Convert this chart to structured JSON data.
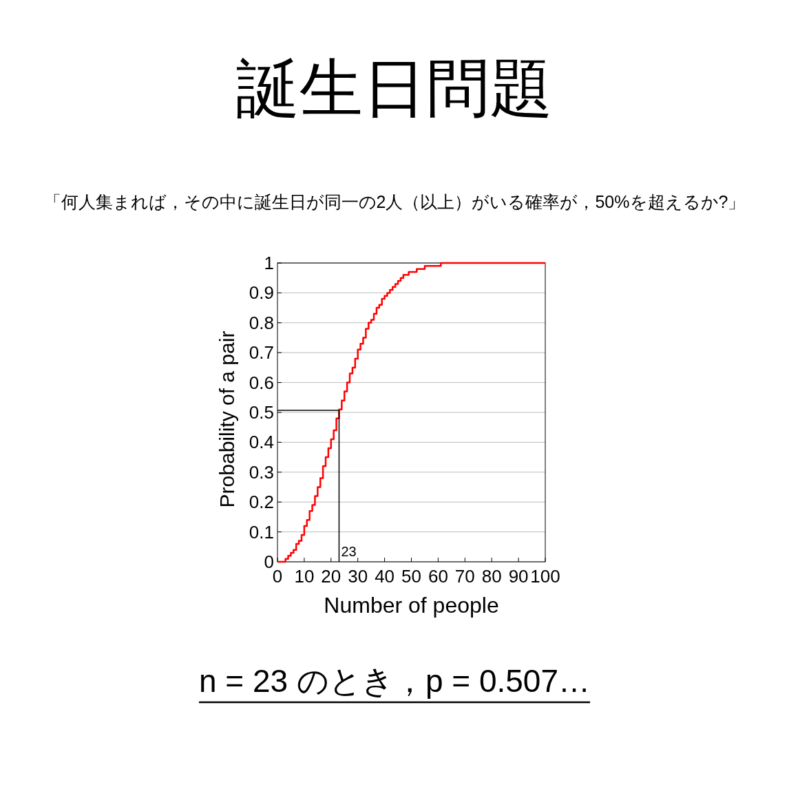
{
  "chart_data": {
    "type": "step",
    "title": "誕生日問題",
    "subtitle": "「何人集まれば，その中に誕生日が同一の2人（以上）がいる確率が，50%を超えるか?」",
    "xlabel": "Number of people",
    "ylabel": "Probability of a pair",
    "xlim": [
      0,
      100
    ],
    "ylim": [
      0,
      1
    ],
    "xticks": [
      0,
      10,
      20,
      30,
      40,
      50,
      60,
      70,
      80,
      90,
      100
    ],
    "yticks": [
      0,
      0.1,
      0.2,
      0.3,
      0.4,
      0.5,
      0.6,
      0.7,
      0.8,
      0.9,
      1
    ],
    "grid": "y",
    "marker": "none",
    "line_style": "solid",
    "series": [
      {
        "color": "#ff0000",
        "type": "step",
        "x": [
          0,
          1,
          2,
          3,
          4,
          5,
          6,
          7,
          8,
          9,
          10,
          11,
          12,
          13,
          14,
          15,
          16,
          17,
          18,
          19,
          20,
          21,
          22,
          23,
          24,
          25,
          26,
          27,
          28,
          29,
          30,
          31,
          32,
          33,
          34,
          35,
          36,
          37,
          38,
          39,
          40,
          41,
          42,
          43,
          44,
          45,
          46,
          47,
          48,
          49,
          50,
          51,
          52,
          53,
          54,
          55,
          56,
          57,
          58,
          59,
          60,
          61,
          62,
          63,
          64,
          65,
          66,
          67,
          68,
          69,
          70,
          71,
          72,
          73,
          74,
          75,
          76,
          77,
          78,
          79,
          80,
          81,
          82,
          83,
          84,
          85,
          86,
          87,
          88,
          89,
          90,
          91,
          92,
          93,
          94,
          95,
          96,
          97,
          98,
          99,
          100
        ],
        "values": [
          0,
          0,
          0,
          0.01,
          0.02,
          0.03,
          0.04,
          0.06,
          0.07,
          0.09,
          0.12,
          0.14,
          0.17,
          0.19,
          0.22,
          0.25,
          0.28,
          0.32,
          0.35,
          0.38,
          0.41,
          0.44,
          0.48,
          0.51,
          0.54,
          0.57,
          0.6,
          0.63,
          0.65,
          0.68,
          0.71,
          0.73,
          0.75,
          0.78,
          0.8,
          0.81,
          0.83,
          0.85,
          0.86,
          0.88,
          0.89,
          0.9,
          0.91,
          0.92,
          0.93,
          0.94,
          0.95,
          0.96,
          0.96,
          0.97,
          0.97,
          0.97,
          0.98,
          0.98,
          0.98,
          0.99,
          0.99,
          0.99,
          0.99,
          0.99,
          0.99,
          1,
          1,
          1,
          1,
          1,
          1,
          1,
          1,
          1,
          1,
          1,
          1,
          1,
          1,
          1,
          1,
          1,
          1,
          1,
          1,
          1,
          1,
          1,
          1,
          1,
          1,
          1,
          1,
          1,
          1,
          1,
          1,
          1,
          1,
          1,
          1,
          1,
          1,
          1,
          1
        ]
      },
      {
        "color": "#000000",
        "type": "line",
        "x": [
          0,
          23,
          23
        ],
        "values": [
          0.507,
          0.507,
          0
        ]
      }
    ],
    "annotations": [
      {
        "text": "23",
        "x": 23,
        "y": 0
      },
      "n = 23 のとき，p = 0.507…"
    ]
  }
}
